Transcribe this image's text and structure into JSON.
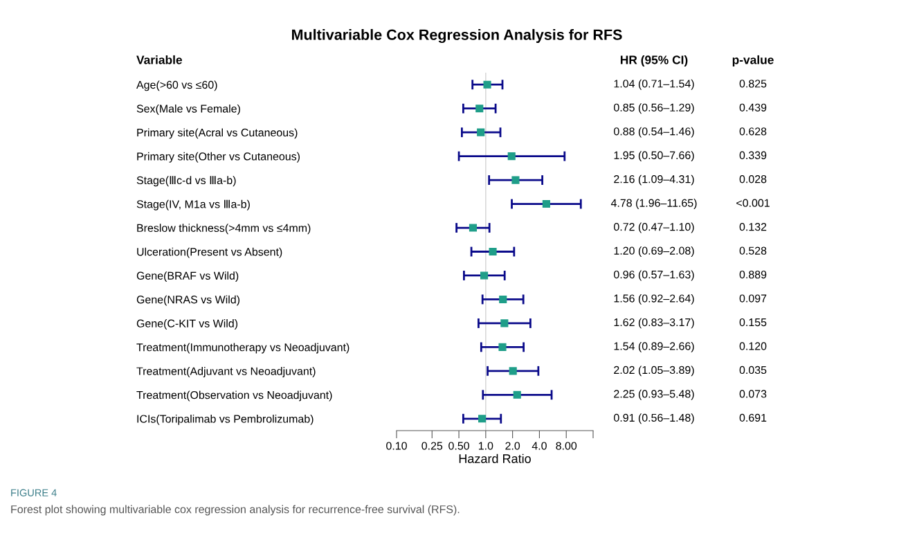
{
  "chart_data": {
    "type": "scatter",
    "orientation": "horizontal",
    "title": "Multivariable Cox Regression Analysis for RFS",
    "ylabel": "Variable",
    "xlabel": "Hazard Ratio",
    "categories": [
      "Age(>60 vs ≤60)",
      "Sex(Male vs Female)",
      "Primary site(Acral vs Cutaneous)",
      "Primary site(Other vs Cutaneous)",
      "Stage(Ⅲc-d vs Ⅲa-b)",
      "Stage(IV, M1a vs Ⅲa-b)",
      "Breslow thickness(>4mm vs ≤4mm)",
      "Ulceration(Present vs Absent)",
      "Gene(BRAF vs Wild)",
      "Gene(NRAS vs Wild)",
      "Gene(C-KIT vs Wild)",
      "Treatment(Immunotherapy vs Neoadjuvant)",
      "Treatment(Adjuvant vs Neoadjuvant)",
      "Treatment(Observation vs Neoadjuvant)",
      "ICIs(Toripalimab vs Pembrolizumab)"
    ],
    "series": [
      {
        "color": "#1f9e89",
        "values": [
          1.04,
          0.85,
          0.88,
          1.95,
          2.16,
          4.78,
          0.72,
          1.2,
          0.96,
          1.56,
          1.62,
          1.54,
          2.02,
          2.25,
          0.91
        ],
        "errors": [
          [
            0.71,
            1.54
          ],
          [
            0.56,
            1.29
          ],
          [
            0.54,
            1.46
          ],
          [
            0.5,
            7.66
          ],
          [
            1.09,
            4.31
          ],
          [
            1.96,
            11.65
          ],
          [
            0.47,
            1.1
          ],
          [
            0.69,
            2.08
          ],
          [
            0.57,
            1.63
          ],
          [
            0.92,
            2.64
          ],
          [
            0.83,
            3.17
          ],
          [
            0.89,
            2.66
          ],
          [
            1.05,
            3.89
          ],
          [
            0.93,
            5.48
          ],
          [
            0.56,
            1.48
          ]
        ],
        "value_labels": [
          "1.04 (0.71–1.54)",
          "0.85 (0.56–1.29)",
          "0.88 (0.54–1.46)",
          "1.95 (0.50–7.66)",
          "2.16 (1.09–4.31)",
          "4.78 (1.96–11.65)",
          "0.72 (0.47–1.10)",
          "1.20 (0.69–2.08)",
          "0.96 (0.57–1.63)",
          "1.56 (0.92–2.64)",
          "1.62 (0.83–3.17)",
          "1.54 (0.89–2.66)",
          "2.02 (1.05–3.89)",
          "2.25 (0.93–5.48)",
          "0.91 (0.56–1.48)"
        ]
      }
    ],
    "log": "x",
    "xlim": [
      0.1,
      16
    ],
    "xticks": [
      {
        "value": 0.1,
        "label": "0.10"
      },
      0.25,
      {
        "value": 0.5,
        "label": "0.50"
      },
      {
        "value": 1,
        "label": "1.0"
      },
      {
        "value": 2,
        "label": "2.0"
      },
      {
        "value": 4,
        "label": "4.0"
      },
      {
        "value": 8,
        "label": "8.00"
      },
      {
        "value": 16,
        "label": null
      }
    ],
    "marker": "square",
    "grid": false,
    "legend": false,
    "ref_lines": [
      {
        "axis": "x",
        "value": 1,
        "color": "#d3d3d3"
      }
    ],
    "annotations": [
      "HR (95% CI)",
      "p-value",
      "0.825",
      "0.439",
      "0.628",
      "0.339",
      "0.028",
      "<0.001",
      "0.132",
      "0.528",
      "0.889",
      "0.097",
      "0.155",
      "0.120",
      "0.035",
      "0.073",
      "0.691",
      "FIGURE 4",
      "Forest plot showing multivariable cox regression analysis for recurrence-free survival (RFS)."
    ]
  }
}
